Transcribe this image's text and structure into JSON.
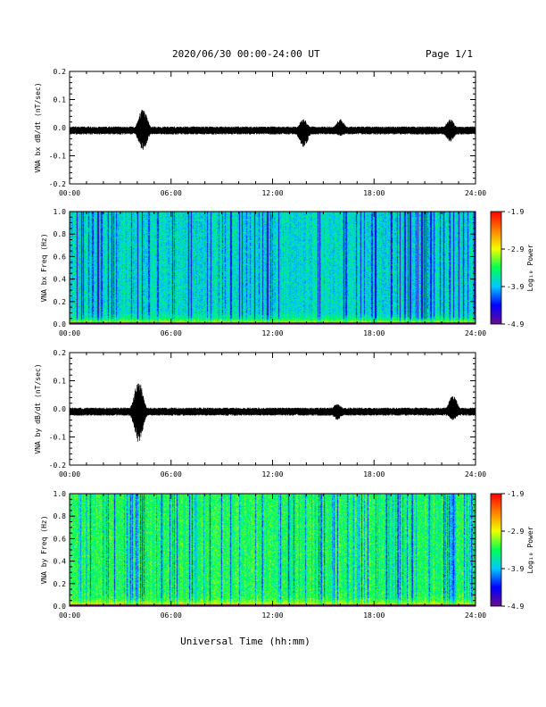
{
  "header": {
    "title": "2020/06/30  00:00-24:00 UT",
    "page": "Page 1/1"
  },
  "colorbar": {
    "label": "Log₁₀ Power",
    "ticks": [
      "-1.9",
      "-2.9",
      "-3.9",
      "-4.9"
    ],
    "colors": [
      "#6a0c8c",
      "#0000ff",
      "#00c8ff",
      "#00ff50",
      "#f0ff00",
      "#ff8000",
      "#ff0000"
    ]
  },
  "xlabel": "Universal Time (hh:mm)",
  "chart_data": [
    {
      "type": "line",
      "ylabel": "VNA bx dB/dt (nT/sec)",
      "xlim": [
        "00:00",
        "24:00"
      ],
      "ylim": [
        -0.2,
        0.2
      ],
      "xticks": [
        "00:00",
        "06:00",
        "12:00",
        "18:00",
        "24:00"
      ],
      "yticks": [
        "0.2",
        "0.1",
        "0.0",
        "-0.1",
        "-0.2"
      ],
      "baseline": -0.01,
      "noise_amplitude": 0.012,
      "bursts": [
        {
          "time": "04:20",
          "max": 0.07,
          "min": -0.08
        },
        {
          "time": "13:50",
          "max": 0.03,
          "min": -0.07
        },
        {
          "time": "16:00",
          "max": 0.03,
          "min": -0.03
        },
        {
          "time": "22:30",
          "max": 0.03,
          "min": -0.05
        }
      ]
    },
    {
      "type": "heatmap",
      "ylabel": "VNA bx Freq (Hz)",
      "xlim": [
        "00:00",
        "24:00"
      ],
      "ylim": [
        0.0,
        1.0
      ],
      "xticks": [
        "00:00",
        "06:00",
        "12:00",
        "18:00",
        "24:00"
      ],
      "yticks": [
        "1.0",
        "0.8",
        "0.6",
        "0.4",
        "0.2",
        "0.0"
      ],
      "zlim": [
        -4.9,
        -1.9
      ],
      "background_log_power": -3.75,
      "low_frequency_log_power": -2.6
    },
    {
      "type": "line",
      "ylabel": "VNA by dB/dt (nT/sec)",
      "xlim": [
        "00:00",
        "24:00"
      ],
      "ylim": [
        -0.2,
        0.2
      ],
      "xticks": [
        "00:00",
        "06:00",
        "12:00",
        "18:00",
        "24:00"
      ],
      "yticks": [
        "0.2",
        "0.1",
        "0.0",
        "-0.1",
        "-0.2"
      ],
      "baseline": -0.01,
      "noise_amplitude": 0.012,
      "bursts": [
        {
          "time": "04:05",
          "max": 0.1,
          "min": -0.12
        },
        {
          "time": "15:50",
          "max": 0.02,
          "min": -0.04
        },
        {
          "time": "22:40",
          "max": 0.05,
          "min": -0.04
        }
      ]
    },
    {
      "type": "heatmap",
      "ylabel": "VNA by Freq (Hz)",
      "xlim": [
        "00:00",
        "24:00"
      ],
      "ylim": [
        0.0,
        1.0
      ],
      "xticks": [
        "00:00",
        "06:00",
        "12:00",
        "18:00",
        "24:00"
      ],
      "yticks": [
        "1.0",
        "0.8",
        "0.6",
        "0.4",
        "0.2",
        "0.0"
      ],
      "zlim": [
        -4.9,
        -1.9
      ],
      "background_log_power": -3.4,
      "low_frequency_log_power": -2.6
    }
  ]
}
